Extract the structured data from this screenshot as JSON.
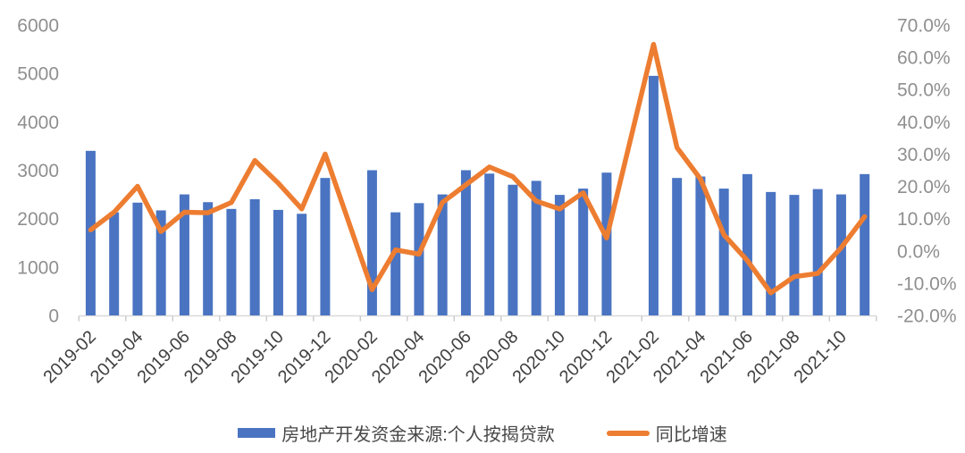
{
  "chart_data": {
    "type": "bar",
    "title": "",
    "xlabel": "",
    "ylabel_left": "",
    "ylabel_right": "",
    "grid": false,
    "legend_position": "bottom",
    "categories": [
      "2019-02",
      "2019-03",
      "2019-04",
      "2019-05",
      "2019-06",
      "2019-07",
      "2019-08",
      "2019-09",
      "2019-10",
      "2019-11",
      "2019-12",
      "2020-01",
      "2020-02",
      "2020-03",
      "2020-04",
      "2020-05",
      "2020-06",
      "2020-07",
      "2020-08",
      "2020-09",
      "2020-10",
      "2020-11",
      "2020-12",
      "2021-01",
      "2021-02",
      "2021-03",
      "2021-04",
      "2021-05",
      "2021-06",
      "2021-07",
      "2021-08",
      "2021-09",
      "2021-10",
      "2021-11"
    ],
    "series": [
      {
        "name": "房地产开发资金来源:个人按揭贷款",
        "type": "bar",
        "axis": "left",
        "color": "#4A74C2",
        "values": [
          3400,
          2130,
          2330,
          2170,
          2500,
          2340,
          2200,
          2400,
          2180,
          2100,
          2840,
          null,
          3000,
          2130,
          2320,
          2500,
          3000,
          2930,
          2700,
          2780,
          2490,
          2620,
          2950,
          null,
          4950,
          2840,
          2870,
          2620,
          2920,
          2550,
          2490,
          2610,
          2500,
          2920
        ]
      },
      {
        "name": "同比增速",
        "type": "line",
        "axis": "right",
        "color": "#ED7D31",
        "values": [
          6.5,
          12,
          20,
          6,
          12,
          11.8,
          15,
          28,
          21,
          13,
          30,
          null,
          -12,
          0.3,
          -1,
          15,
          20.5,
          26,
          23,
          15.4,
          13,
          18,
          4,
          null,
          64,
          32,
          22.3,
          5,
          -3,
          -13,
          -8,
          -7,
          1,
          10.6
        ]
      }
    ],
    "left_axis": {
      "min": 0,
      "max": 6000,
      "tick_labels": [
        "0",
        "1000",
        "2000",
        "3000",
        "4000",
        "5000",
        "6000"
      ]
    },
    "right_axis": {
      "min": -20,
      "max": 70,
      "tick_labels": [
        "-20.0%",
        "-10.0%",
        "0.0%",
        "10.0%",
        "20.0%",
        "30.0%",
        "40.0%",
        "50.0%",
        "60.0%",
        "70.0%"
      ]
    },
    "x_tick_labels": [
      "2019-02",
      "2019-04",
      "2019-06",
      "2019-08",
      "2019-10",
      "2019-12",
      "2020-02",
      "2020-04",
      "2020-06",
      "2020-08",
      "2020-10",
      "2020-12",
      "2021-02",
      "2021-04",
      "2021-06",
      "2021-08",
      "2021-10"
    ]
  },
  "colors": {
    "bar": "#4A74C2",
    "line": "#ED7D31",
    "axis_line": "#D9D9D9",
    "tick_mark": "#C9C9C9",
    "y_label_text": "#8f8f8f",
    "x_label_text": "#404040",
    "legend_text": "#474747"
  }
}
